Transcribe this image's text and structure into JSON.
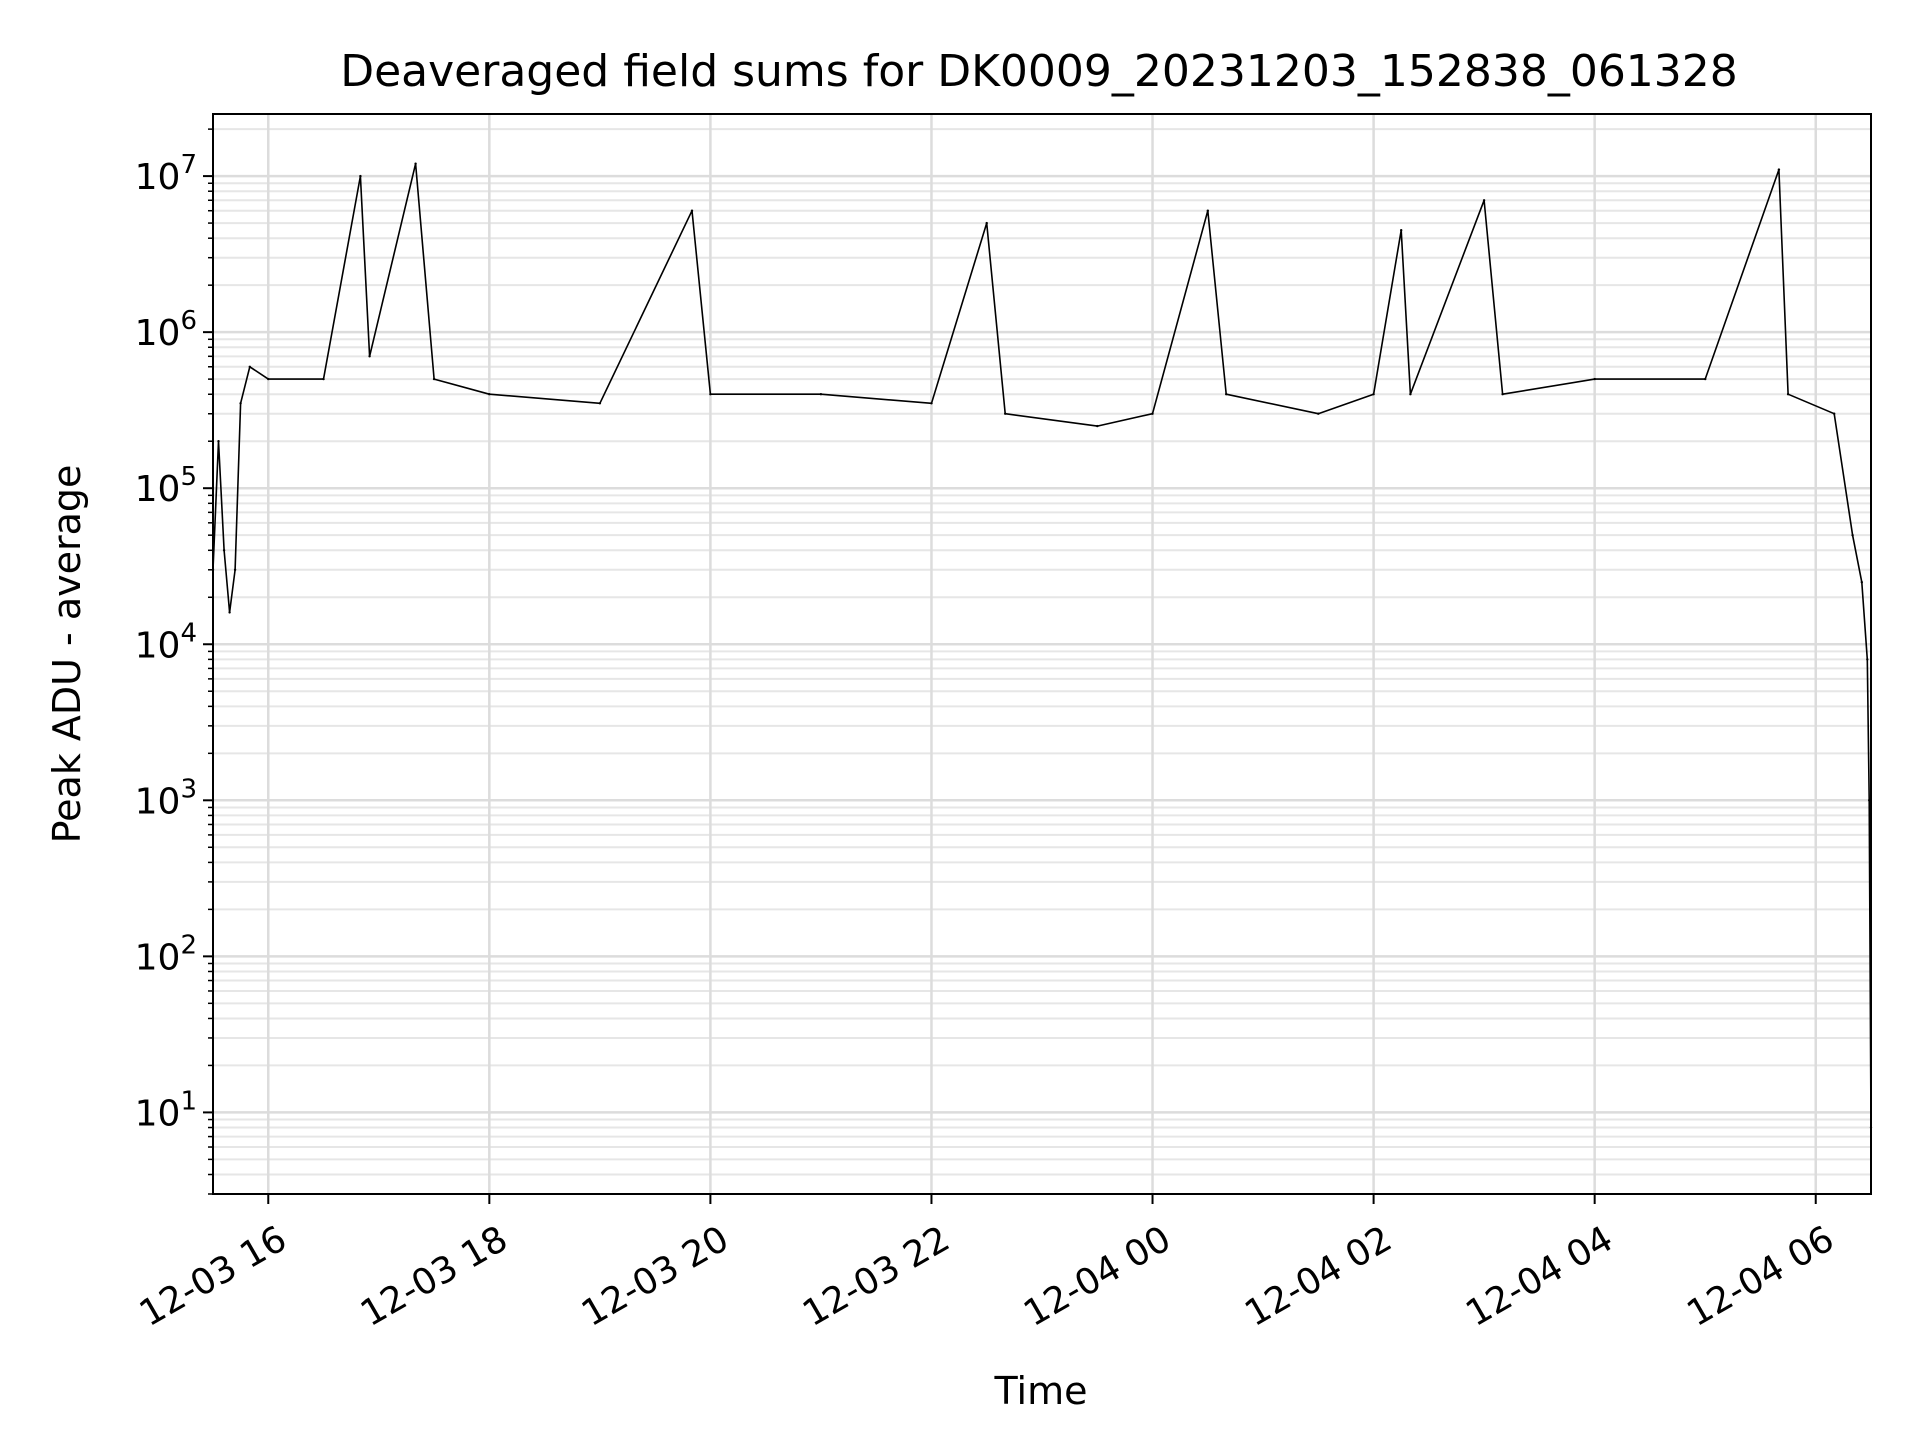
{
  "chart_data": {
    "type": "line",
    "title": "Deaveraged field sums for DK0009_20231203_152838_061328",
    "xlabel": "Time",
    "ylabel": "Peak ADU - average",
    "yscale": "log",
    "xlim": [
      "2023-12-03 15:30",
      "2023-12-04 06:30"
    ],
    "ylim": [
      3,
      25000000
    ],
    "grid": true,
    "x_ticks": [
      {
        "value": "2023-12-03 16:00",
        "label": "12-03 16"
      },
      {
        "value": "2023-12-03 18:00",
        "label": "12-03 18"
      },
      {
        "value": "2023-12-03 20:00",
        "label": "12-03 20"
      },
      {
        "value": "2023-12-03 22:00",
        "label": "12-03 22"
      },
      {
        "value": "2023-12-04 00:00",
        "label": "12-04 00"
      },
      {
        "value": "2023-12-04 02:00",
        "label": "12-04 02"
      },
      {
        "value": "2023-12-04 04:00",
        "label": "12-04 04"
      },
      {
        "value": "2023-12-04 06:00",
        "label": "12-04 06"
      }
    ],
    "y_ticks": [
      {
        "value": 10,
        "base": "10",
        "exp": "1"
      },
      {
        "value": 100,
        "base": "10",
        "exp": "2"
      },
      {
        "value": 1000,
        "base": "10",
        "exp": "3"
      },
      {
        "value": 10000,
        "base": "10",
        "exp": "4"
      },
      {
        "value": 100000,
        "base": "10",
        "exp": "5"
      },
      {
        "value": 1000000,
        "base": "10",
        "exp": "6"
      },
      {
        "value": 10000000,
        "base": "10",
        "exp": "7"
      }
    ],
    "series": [
      {
        "color": "#000000",
        "points": [
          [
            "2023-12-03 15:30",
            30000
          ],
          [
            "2023-12-03 15:33",
            200000
          ],
          [
            "2023-12-03 15:36",
            40000
          ],
          [
            "2023-12-03 15:39",
            16000
          ],
          [
            "2023-12-03 15:42",
            30000
          ],
          [
            "2023-12-03 15:45",
            350000
          ],
          [
            "2023-12-03 15:50",
            600000
          ],
          [
            "2023-12-03 16:00",
            500000
          ],
          [
            "2023-12-03 16:30",
            500000
          ],
          [
            "2023-12-03 16:50",
            10000000
          ],
          [
            "2023-12-03 16:55",
            700000
          ],
          [
            "2023-12-03 17:20",
            12000000
          ],
          [
            "2023-12-03 17:30",
            500000
          ],
          [
            "2023-12-03 18:00",
            400000
          ],
          [
            "2023-12-03 19:00",
            350000
          ],
          [
            "2023-12-03 19:50",
            6000000
          ],
          [
            "2023-12-03 20:00",
            400000
          ],
          [
            "2023-12-03 21:00",
            400000
          ],
          [
            "2023-12-03 22:00",
            350000
          ],
          [
            "2023-12-03 22:30",
            5000000
          ],
          [
            "2023-12-03 22:40",
            300000
          ],
          [
            "2023-12-03 23:30",
            250000
          ],
          [
            "2023-12-04 00:00",
            300000
          ],
          [
            "2023-12-04 00:30",
            6000000
          ],
          [
            "2023-12-04 00:40",
            400000
          ],
          [
            "2023-12-04 01:30",
            300000
          ],
          [
            "2023-12-04 02:00",
            400000
          ],
          [
            "2023-12-04 02:15",
            4500000
          ],
          [
            "2023-12-04 02:20",
            400000
          ],
          [
            "2023-12-04 03:00",
            7000000
          ],
          [
            "2023-12-04 03:10",
            400000
          ],
          [
            "2023-12-04 04:00",
            500000
          ],
          [
            "2023-12-04 05:00",
            500000
          ],
          [
            "2023-12-04 05:40",
            11000000
          ],
          [
            "2023-12-04 05:45",
            400000
          ],
          [
            "2023-12-04 06:10",
            300000
          ],
          [
            "2023-12-04 06:20",
            50000
          ],
          [
            "2023-12-04 06:25",
            25000
          ],
          [
            "2023-12-04 06:28",
            8000
          ],
          [
            "2023-12-04 06:29",
            1000
          ],
          [
            "2023-12-04 06:30",
            8
          ]
        ]
      }
    ]
  }
}
